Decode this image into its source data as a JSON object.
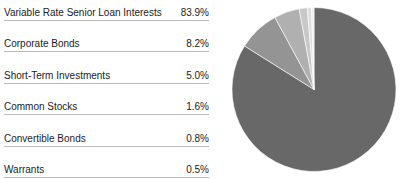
{
  "chart_data": {
    "type": "pie",
    "categories": [
      "Variable Rate Senior Loan Interests",
      "Corporate Bonds",
      "Short-Term Investments",
      "Common Stocks",
      "Convertible Bonds",
      "Warrants"
    ],
    "values": [
      83.9,
      8.2,
      5.0,
      1.6,
      0.8,
      0.5
    ],
    "value_labels": [
      "83.9%",
      "8.2%",
      "5.0%",
      "1.6%",
      "0.8%",
      "0.5%"
    ],
    "colors": [
      "#686868",
      "#949494",
      "#b0b0b0",
      "#c8c8c8",
      "#dedede",
      "#efefef"
    ],
    "legend": "left"
  }
}
